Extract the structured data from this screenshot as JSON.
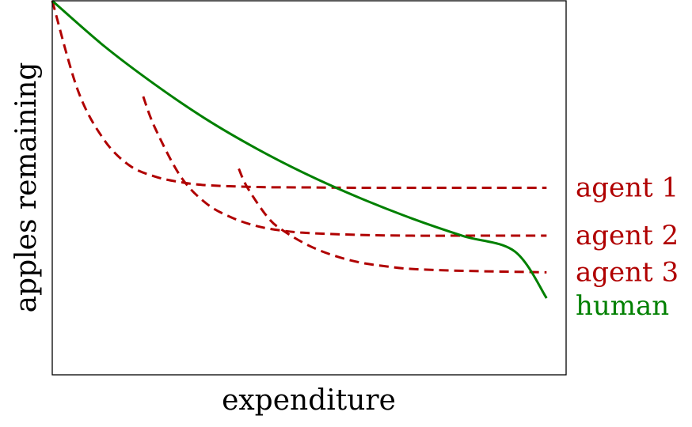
{
  "chart_data": {
    "type": "line",
    "xlabel": "expenditure",
    "ylabel": "apples remaining",
    "xlim": [
      0,
      1
    ],
    "ylim": [
      0,
      1
    ],
    "ticks": "none",
    "grid": false,
    "legend_placement": "right, beside line ends",
    "series": [
      {
        "name": "human",
        "color": "#008000",
        "style": "solid",
        "x": [
          0,
          0.1,
          0.2,
          0.3,
          0.4,
          0.5,
          0.6,
          0.7,
          0.8,
          0.9,
          0.962
        ],
        "y": [
          1.0,
          0.88,
          0.776,
          0.683,
          0.603,
          0.533,
          0.472,
          0.418,
          0.371,
          0.33,
          0.205
        ]
      },
      {
        "name": "agent 1",
        "color": "#b00000",
        "style": "dashed",
        "x": [
          0,
          0.05,
          0.1,
          0.15,
          0.2,
          0.25,
          0.3,
          0.4,
          0.5,
          0.6,
          0.8,
          0.962
        ],
        "y": [
          1.0,
          0.76,
          0.63,
          0.56,
          0.53,
          0.515,
          0.507,
          0.502,
          0.501,
          0.5,
          0.5,
          0.5
        ]
      },
      {
        "name": "agent 2",
        "color": "#b00000",
        "style": "dashed",
        "x": [
          0.177,
          0.2,
          0.25,
          0.3,
          0.35,
          0.4,
          0.45,
          0.5,
          0.6,
          0.7,
          0.8,
          0.962
        ],
        "y": [
          0.744,
          0.66,
          0.53,
          0.458,
          0.42,
          0.397,
          0.385,
          0.379,
          0.374,
          0.372,
          0.372,
          0.372
        ]
      },
      {
        "name": "agent 3",
        "color": "#b00000",
        "style": "dashed",
        "x": [
          0.363,
          0.38,
          0.42,
          0.45,
          0.5,
          0.55,
          0.6,
          0.65,
          0.7,
          0.8,
          0.962
        ],
        "y": [
          0.551,
          0.5,
          0.42,
          0.385,
          0.345,
          0.318,
          0.3,
          0.29,
          0.283,
          0.278,
          0.274
        ]
      }
    ]
  }
}
